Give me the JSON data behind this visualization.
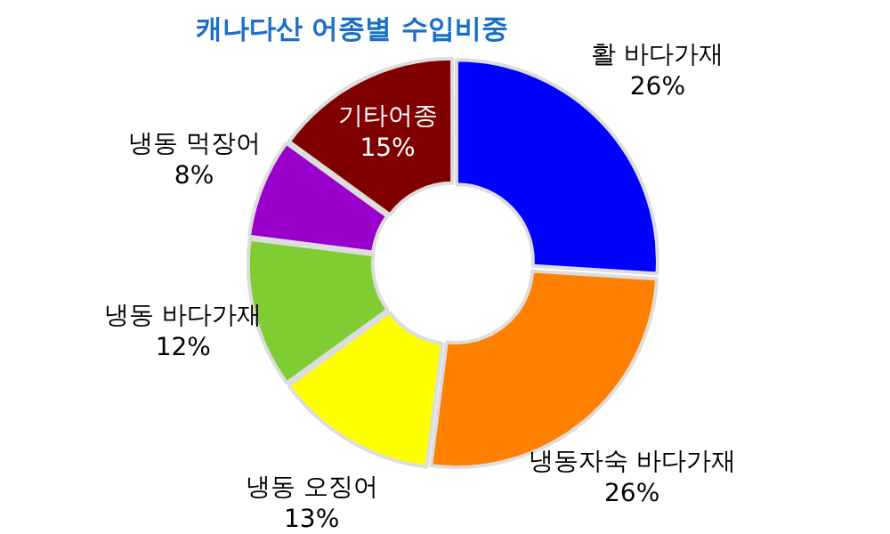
{
  "chart_data": {
    "type": "donut",
    "title": "캐나다산 어종별 수입비중",
    "categories": [
      "활 바다가재",
      "냉동자숙 바다가재",
      "냉동 오징어",
      "냉동 바다가재",
      "냉동 먹장어",
      "기타어종"
    ],
    "values": [
      26,
      26,
      13,
      12,
      8,
      15
    ],
    "colors": [
      "#0000ff",
      "#ff8000",
      "#ffff00",
      "#80cc33",
      "#9900cc",
      "#800000"
    ],
    "value_labels": [
      "26%",
      "26%",
      "13%",
      "12%",
      "8%",
      "15%"
    ],
    "legend": false
  }
}
